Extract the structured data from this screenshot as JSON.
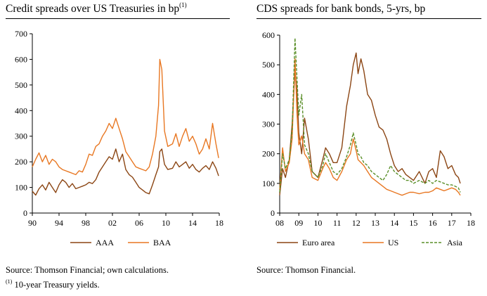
{
  "chart_data": [
    {
      "type": "line",
      "title": "Credit spreads over US Treasuries in bp",
      "title_note_mark": "(1)",
      "ylim": [
        0,
        700
      ],
      "y_ticks": [
        0,
        100,
        200,
        300,
        400,
        500,
        600,
        700
      ],
      "xlim": [
        1990,
        2018
      ],
      "x_ticks": [
        1990,
        1994,
        1998,
        2002,
        2006,
        2010,
        2014,
        2018
      ],
      "x_tick_labels": [
        "90",
        "94",
        "98",
        "02",
        "06",
        "10",
        "14",
        "18"
      ],
      "legend": "bottom",
      "series": [
        {
          "name": "AAA",
          "color": "#8B4513",
          "dashed": false,
          "x": [
            1990.0,
            1990.5,
            1991.0,
            1991.5,
            1992.0,
            1992.5,
            1993.0,
            1993.5,
            1994.0,
            1994.5,
            1995.0,
            1995.5,
            1996.0,
            1996.5,
            1997.0,
            1997.5,
            1998.0,
            1998.5,
            1999.0,
            1999.5,
            2000.0,
            2000.5,
            2001.0,
            2001.5,
            2002.0,
            2002.5,
            2003.0,
            2003.5,
            2004.0,
            2004.5,
            2005.0,
            2005.5,
            2006.0,
            2006.5,
            2007.0,
            2007.5,
            2008.0,
            2008.5,
            2008.9,
            2009.1,
            2009.4,
            2009.8,
            2010.3,
            2011.0,
            2011.5,
            2012.0,
            2012.5,
            2013.0,
            2013.5,
            2014.0,
            2014.5,
            2015.0,
            2015.5,
            2016.0,
            2016.5,
            2017.0,
            2017.5,
            2017.9
          ],
          "values": [
            85,
            70,
            95,
            110,
            90,
            120,
            100,
            80,
            110,
            130,
            120,
            100,
            115,
            95,
            100,
            105,
            110,
            120,
            115,
            130,
            160,
            180,
            200,
            220,
            210,
            250,
            200,
            230,
            170,
            150,
            140,
            120,
            100,
            90,
            80,
            75,
            110,
            150,
            180,
            240,
            250,
            190,
            170,
            175,
            200,
            180,
            190,
            200,
            175,
            190,
            170,
            160,
            175,
            185,
            170,
            200,
            175,
            145
          ]
        },
        {
          "name": "BAA",
          "color": "#E87722",
          "dashed": false,
          "x": [
            1990.0,
            1990.5,
            1991.0,
            1991.5,
            1992.0,
            1992.5,
            1993.0,
            1993.5,
            1994.0,
            1994.5,
            1995.0,
            1995.5,
            1996.0,
            1996.5,
            1997.0,
            1997.5,
            1998.0,
            1998.5,
            1999.0,
            1999.5,
            2000.0,
            2000.5,
            2001.0,
            2001.5,
            2002.0,
            2002.5,
            2003.0,
            2003.5,
            2004.0,
            2004.5,
            2005.0,
            2005.5,
            2006.0,
            2006.5,
            2007.0,
            2007.5,
            2008.0,
            2008.5,
            2008.9,
            2009.1,
            2009.4,
            2009.8,
            2010.3,
            2011.0,
            2011.5,
            2012.0,
            2012.5,
            2013.0,
            2013.5,
            2014.0,
            2014.5,
            2015.0,
            2015.5,
            2016.0,
            2016.5,
            2017.0,
            2017.5,
            2017.9
          ],
          "values": [
            180,
            210,
            235,
            200,
            225,
            190,
            210,
            200,
            180,
            170,
            165,
            160,
            155,
            150,
            165,
            160,
            190,
            230,
            225,
            260,
            270,
            300,
            320,
            350,
            330,
            370,
            330,
            290,
            240,
            220,
            200,
            180,
            175,
            170,
            165,
            180,
            230,
            300,
            420,
            600,
            560,
            320,
            260,
            270,
            310,
            260,
            300,
            330,
            280,
            300,
            270,
            230,
            250,
            290,
            250,
            350,
            270,
            215
          ]
        }
      ]
    },
    {
      "type": "line",
      "title": "CDS spreads for bank bonds, 5-yrs, bp",
      "ylim": [
        0,
        600
      ],
      "y_ticks": [
        0,
        100,
        200,
        300,
        400,
        500,
        600
      ],
      "xlim": [
        2008,
        2018
      ],
      "x_ticks": [
        2008,
        2009,
        2010,
        2011,
        2012,
        2013,
        2014,
        2015,
        2016,
        2017,
        2018
      ],
      "x_tick_labels": [
        "08",
        "09",
        "10",
        "11",
        "12",
        "13",
        "14",
        "15",
        "16",
        "17",
        "18"
      ],
      "legend": "bottom",
      "series": [
        {
          "name": "Euro area",
          "color": "#8B4513",
          "dashed": false,
          "x": [
            2008.0,
            2008.15,
            2008.3,
            2008.5,
            2008.65,
            2008.8,
            2008.9,
            2009.0,
            2009.15,
            2009.3,
            2009.5,
            2009.7,
            2010.0,
            2010.25,
            2010.4,
            2010.6,
            2010.8,
            2011.0,
            2011.25,
            2011.5,
            2011.7,
            2011.85,
            2012.0,
            2012.1,
            2012.25,
            2012.4,
            2012.6,
            2012.8,
            2013.0,
            2013.2,
            2013.4,
            2013.6,
            2013.8,
            2014.0,
            2014.2,
            2014.4,
            2014.6,
            2014.8,
            2015.0,
            2015.3,
            2015.6,
            2015.8,
            2016.0,
            2016.2,
            2016.4,
            2016.6,
            2016.8,
            2017.0,
            2017.2,
            2017.35,
            2017.45
          ],
          "values": [
            60,
            150,
            120,
            180,
            300,
            480,
            420,
            270,
            200,
            320,
            250,
            140,
            120,
            180,
            220,
            200,
            170,
            170,
            220,
            360,
            430,
            500,
            540,
            470,
            520,
            480,
            400,
            380,
            330,
            290,
            280,
            250,
            200,
            160,
            140,
            150,
            130,
            120,
            110,
            140,
            100,
            140,
            150,
            120,
            210,
            190,
            150,
            160,
            130,
            120,
            100
          ]
        },
        {
          "name": "US",
          "color": "#E87722",
          "dashed": false,
          "x": [
            2008.0,
            2008.15,
            2008.3,
            2008.5,
            2008.65,
            2008.8,
            2008.9,
            2009.0,
            2009.15,
            2009.3,
            2009.5,
            2009.7,
            2010.0,
            2010.25,
            2010.4,
            2010.6,
            2010.8,
            2011.0,
            2011.25,
            2011.5,
            2011.7,
            2011.85,
            2012.0,
            2012.1,
            2012.25,
            2012.4,
            2012.6,
            2012.8,
            2013.0,
            2013.2,
            2013.4,
            2013.6,
            2013.8,
            2014.0,
            2014.2,
            2014.4,
            2014.6,
            2014.8,
            2015.0,
            2015.3,
            2015.6,
            2015.8,
            2016.0,
            2016.2,
            2016.4,
            2016.6,
            2016.8,
            2017.0,
            2017.2,
            2017.35,
            2017.45
          ],
          "values": [
            80,
            220,
            140,
            170,
            250,
            520,
            340,
            230,
            260,
            200,
            180,
            120,
            110,
            150,
            170,
            150,
            120,
            110,
            140,
            180,
            200,
            250,
            210,
            180,
            170,
            160,
            140,
            120,
            110,
            100,
            90,
            80,
            75,
            70,
            65,
            60,
            65,
            70,
            70,
            65,
            70,
            70,
            75,
            85,
            80,
            75,
            80,
            85,
            80,
            70,
            60
          ]
        },
        {
          "name": "Asia",
          "color": "#5A8F29",
          "dashed": true,
          "x": [
            2008.0,
            2008.15,
            2008.3,
            2008.5,
            2008.65,
            2008.8,
            2008.9,
            2009.0,
            2009.15,
            2009.3,
            2009.5,
            2009.7,
            2010.0,
            2010.25,
            2010.4,
            2010.6,
            2010.8,
            2011.0,
            2011.25,
            2011.5,
            2011.7,
            2011.85,
            2012.0,
            2012.1,
            2012.25,
            2012.4,
            2012.6,
            2012.8,
            2013.0,
            2013.2,
            2013.4,
            2013.6,
            2013.8,
            2014.0,
            2014.2,
            2014.4,
            2014.6,
            2014.8,
            2015.0,
            2015.3,
            2015.6,
            2015.8,
            2016.0,
            2016.2,
            2016.4,
            2016.6,
            2016.8,
            2017.0,
            2017.2,
            2017.35,
            2017.45
          ],
          "values": [
            70,
            200,
            150,
            180,
            280,
            590,
            460,
            330,
            400,
            230,
            200,
            140,
            120,
            160,
            200,
            170,
            140,
            130,
            150,
            190,
            230,
            270,
            230,
            200,
            190,
            170,
            160,
            140,
            130,
            120,
            110,
            130,
            160,
            140,
            130,
            120,
            110,
            110,
            100,
            110,
            100,
            110,
            100,
            110,
            105,
            100,
            95,
            95,
            90,
            85,
            70
          ]
        }
      ]
    }
  ],
  "sources": {
    "left": "Source: Thomson Financial; own calculations.",
    "left_footnote_mark": "(1)",
    "left_footnote": "10-year Treasury yields.",
    "right": "Source: Thomson Financial."
  }
}
